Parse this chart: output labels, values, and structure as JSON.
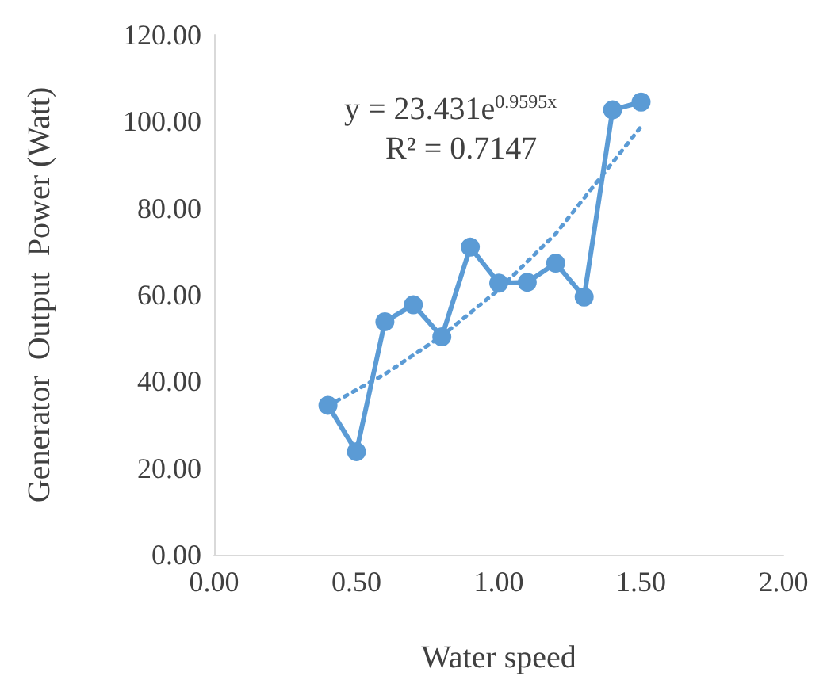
{
  "chart_data": {
    "type": "line",
    "xlabel": "Water speed",
    "ylabel": "Generator  Output  Power (Watt)",
    "xlim": [
      0,
      2
    ],
    "xticks": [
      {
        "value": 0,
        "label": "0.00"
      },
      {
        "value": 0.5,
        "label": "0.50"
      },
      {
        "value": 1,
        "label": "1.00"
      },
      {
        "value": 1.5,
        "label": "1.50"
      },
      {
        "value": 2,
        "label": "2.00"
      }
    ],
    "ylim": [
      0,
      120
    ],
    "yticks": [
      {
        "value": 0,
        "label": "0.00"
      },
      {
        "value": 20,
        "label": "20.00"
      },
      {
        "value": 40,
        "label": "40.00"
      },
      {
        "value": 60,
        "label": "60.00"
      },
      {
        "value": 80,
        "label": "80.00"
      },
      {
        "value": 100,
        "label": "100.00"
      },
      {
        "value": 120,
        "label": "120.00"
      }
    ],
    "grid": false,
    "marker": "circle",
    "series": [
      {
        "color": "#5b9bd5",
        "line_style": "solid",
        "x": [
          0.4,
          0.5,
          0.6,
          0.7,
          0.8,
          0.9,
          1.0,
          1.1,
          1.2,
          1.3,
          1.4,
          1.5
        ],
        "values": [
          34.5,
          23.8,
          53.8,
          57.7,
          50.3,
          71,
          62.7,
          62.9,
          67.3,
          59.5,
          102.7,
          104.5
        ]
      },
      {
        "color": "#5b9bd5",
        "line_style": "dotted",
        "marker": "none",
        "x": [
          0.4,
          0.6,
          0.8,
          1.0,
          1.2,
          1.5
        ],
        "values": [
          34.4,
          41.7,
          50.5,
          61.2,
          74.1,
          98.8
        ]
      }
    ],
    "annotations": [
      "y = 23.431e$^{0.9595x}$",
      "R² = 0.7147"
    ]
  }
}
